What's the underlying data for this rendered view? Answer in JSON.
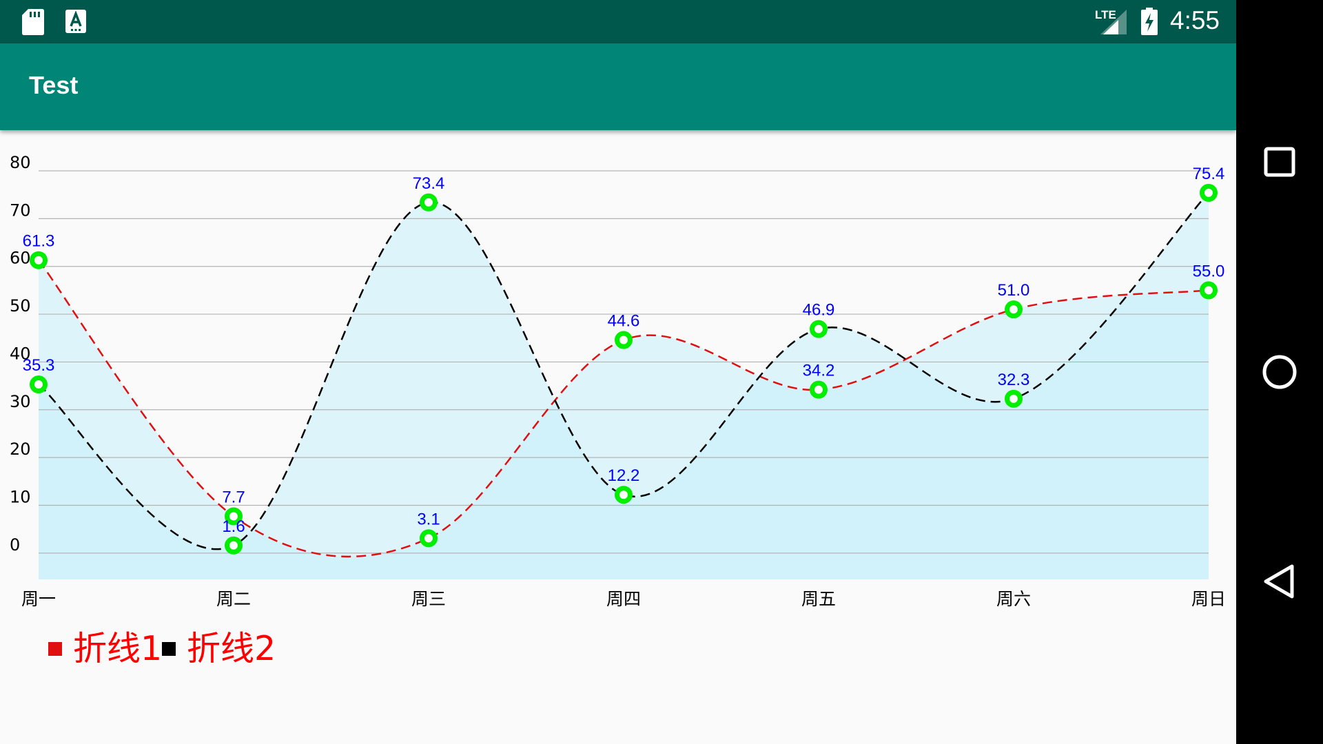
{
  "status_bar": {
    "time": "4:55",
    "network": "LTE",
    "icons": [
      "sd-card-icon",
      "keyboard-a-icon",
      "signal-icon",
      "battery-charging-icon"
    ]
  },
  "app_bar": {
    "title": "Test"
  },
  "nav_bar": {
    "icons": [
      "recents-square-icon",
      "home-circle-icon",
      "back-triangle-icon"
    ]
  },
  "colors": {
    "status_bar": "#00574b",
    "app_bar": "#008577",
    "series1_line": "#e01010",
    "series2_line": "#000000",
    "point": "#00ee00",
    "value_label": "#0000ff",
    "fill": "#b8eefb",
    "legend_text": "#ff0000"
  },
  "chart_data": {
    "type": "line",
    "categories": [
      "周一",
      "周二",
      "周三",
      "周四",
      "周五",
      "周六",
      "周日"
    ],
    "series": [
      {
        "name": "折线1",
        "values": [
          61.3,
          7.7,
          3.1,
          44.6,
          34.2,
          51.0,
          55.0
        ],
        "color": "#e01010",
        "line_style": "dashed",
        "smooth": true
      },
      {
        "name": "折线2",
        "values": [
          35.3,
          1.6,
          73.4,
          12.2,
          46.9,
          32.3,
          75.4
        ],
        "color": "#000000",
        "line_style": "dashed",
        "smooth": true,
        "filled": true
      }
    ],
    "yticks": [
      0,
      10,
      20,
      30,
      40,
      50,
      60,
      70,
      80
    ],
    "ylim": [
      -5.5,
      80
    ],
    "grid": true,
    "legend": "bottom-left",
    "data_labels": true
  }
}
